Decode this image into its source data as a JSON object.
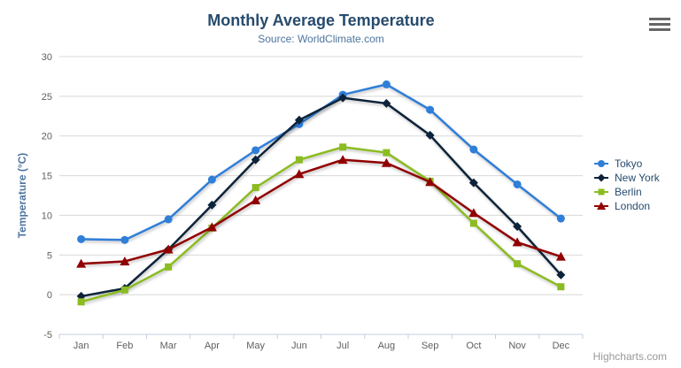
{
  "header": {
    "menu_icon": "hamburger-icon"
  },
  "credits": {
    "label": "Highcharts.com"
  },
  "chart_data": {
    "type": "line",
    "title": "Monthly Average Temperature",
    "subtitle": "Source: WorldClimate.com",
    "xlabel": "",
    "ylabel": "Temperature (°C)",
    "categories": [
      "Jan",
      "Feb",
      "Mar",
      "Apr",
      "May",
      "Jun",
      "Jul",
      "Aug",
      "Sep",
      "Oct",
      "Nov",
      "Dec"
    ],
    "yticks": [
      -5,
      0,
      5,
      10,
      15,
      20,
      25,
      30
    ],
    "ylim": [
      -5,
      30
    ],
    "grid": "horizontal",
    "legend_position": "right",
    "series": [
      {
        "name": "Tokyo",
        "color": "#2f7ed8",
        "marker": "circle",
        "values": [
          7.0,
          6.9,
          9.5,
          14.5,
          18.2,
          21.5,
          25.2,
          26.5,
          23.3,
          18.3,
          13.9,
          9.6
        ]
      },
      {
        "name": "New York",
        "color": "#0d233a",
        "marker": "diamond",
        "values": [
          -0.2,
          0.8,
          5.7,
          11.3,
          17.0,
          22.0,
          24.8,
          24.1,
          20.1,
          14.1,
          8.6,
          2.5
        ]
      },
      {
        "name": "Berlin",
        "color": "#8bbc21",
        "marker": "square",
        "values": [
          -0.9,
          0.6,
          3.5,
          8.4,
          13.5,
          17.0,
          18.6,
          17.9,
          14.3,
          9.0,
          3.9,
          1.0
        ]
      },
      {
        "name": "London",
        "color": "#910000",
        "marker": "triangle",
        "values": [
          3.9,
          4.2,
          5.7,
          8.5,
          11.9,
          15.2,
          17.0,
          16.6,
          14.2,
          10.3,
          6.6,
          4.8
        ]
      }
    ]
  },
  "colors": {
    "title": "#274b6d",
    "subtitle": "#4d759e",
    "axis_title": "#4d759e",
    "axis_label": "#606060",
    "grid_line": "#d8d8d8",
    "axis_line": "#c0d0e0",
    "legend_text": "#274b6d",
    "credits_text": "#999999",
    "menu_icon": "#666666",
    "background": "#ffffff"
  }
}
